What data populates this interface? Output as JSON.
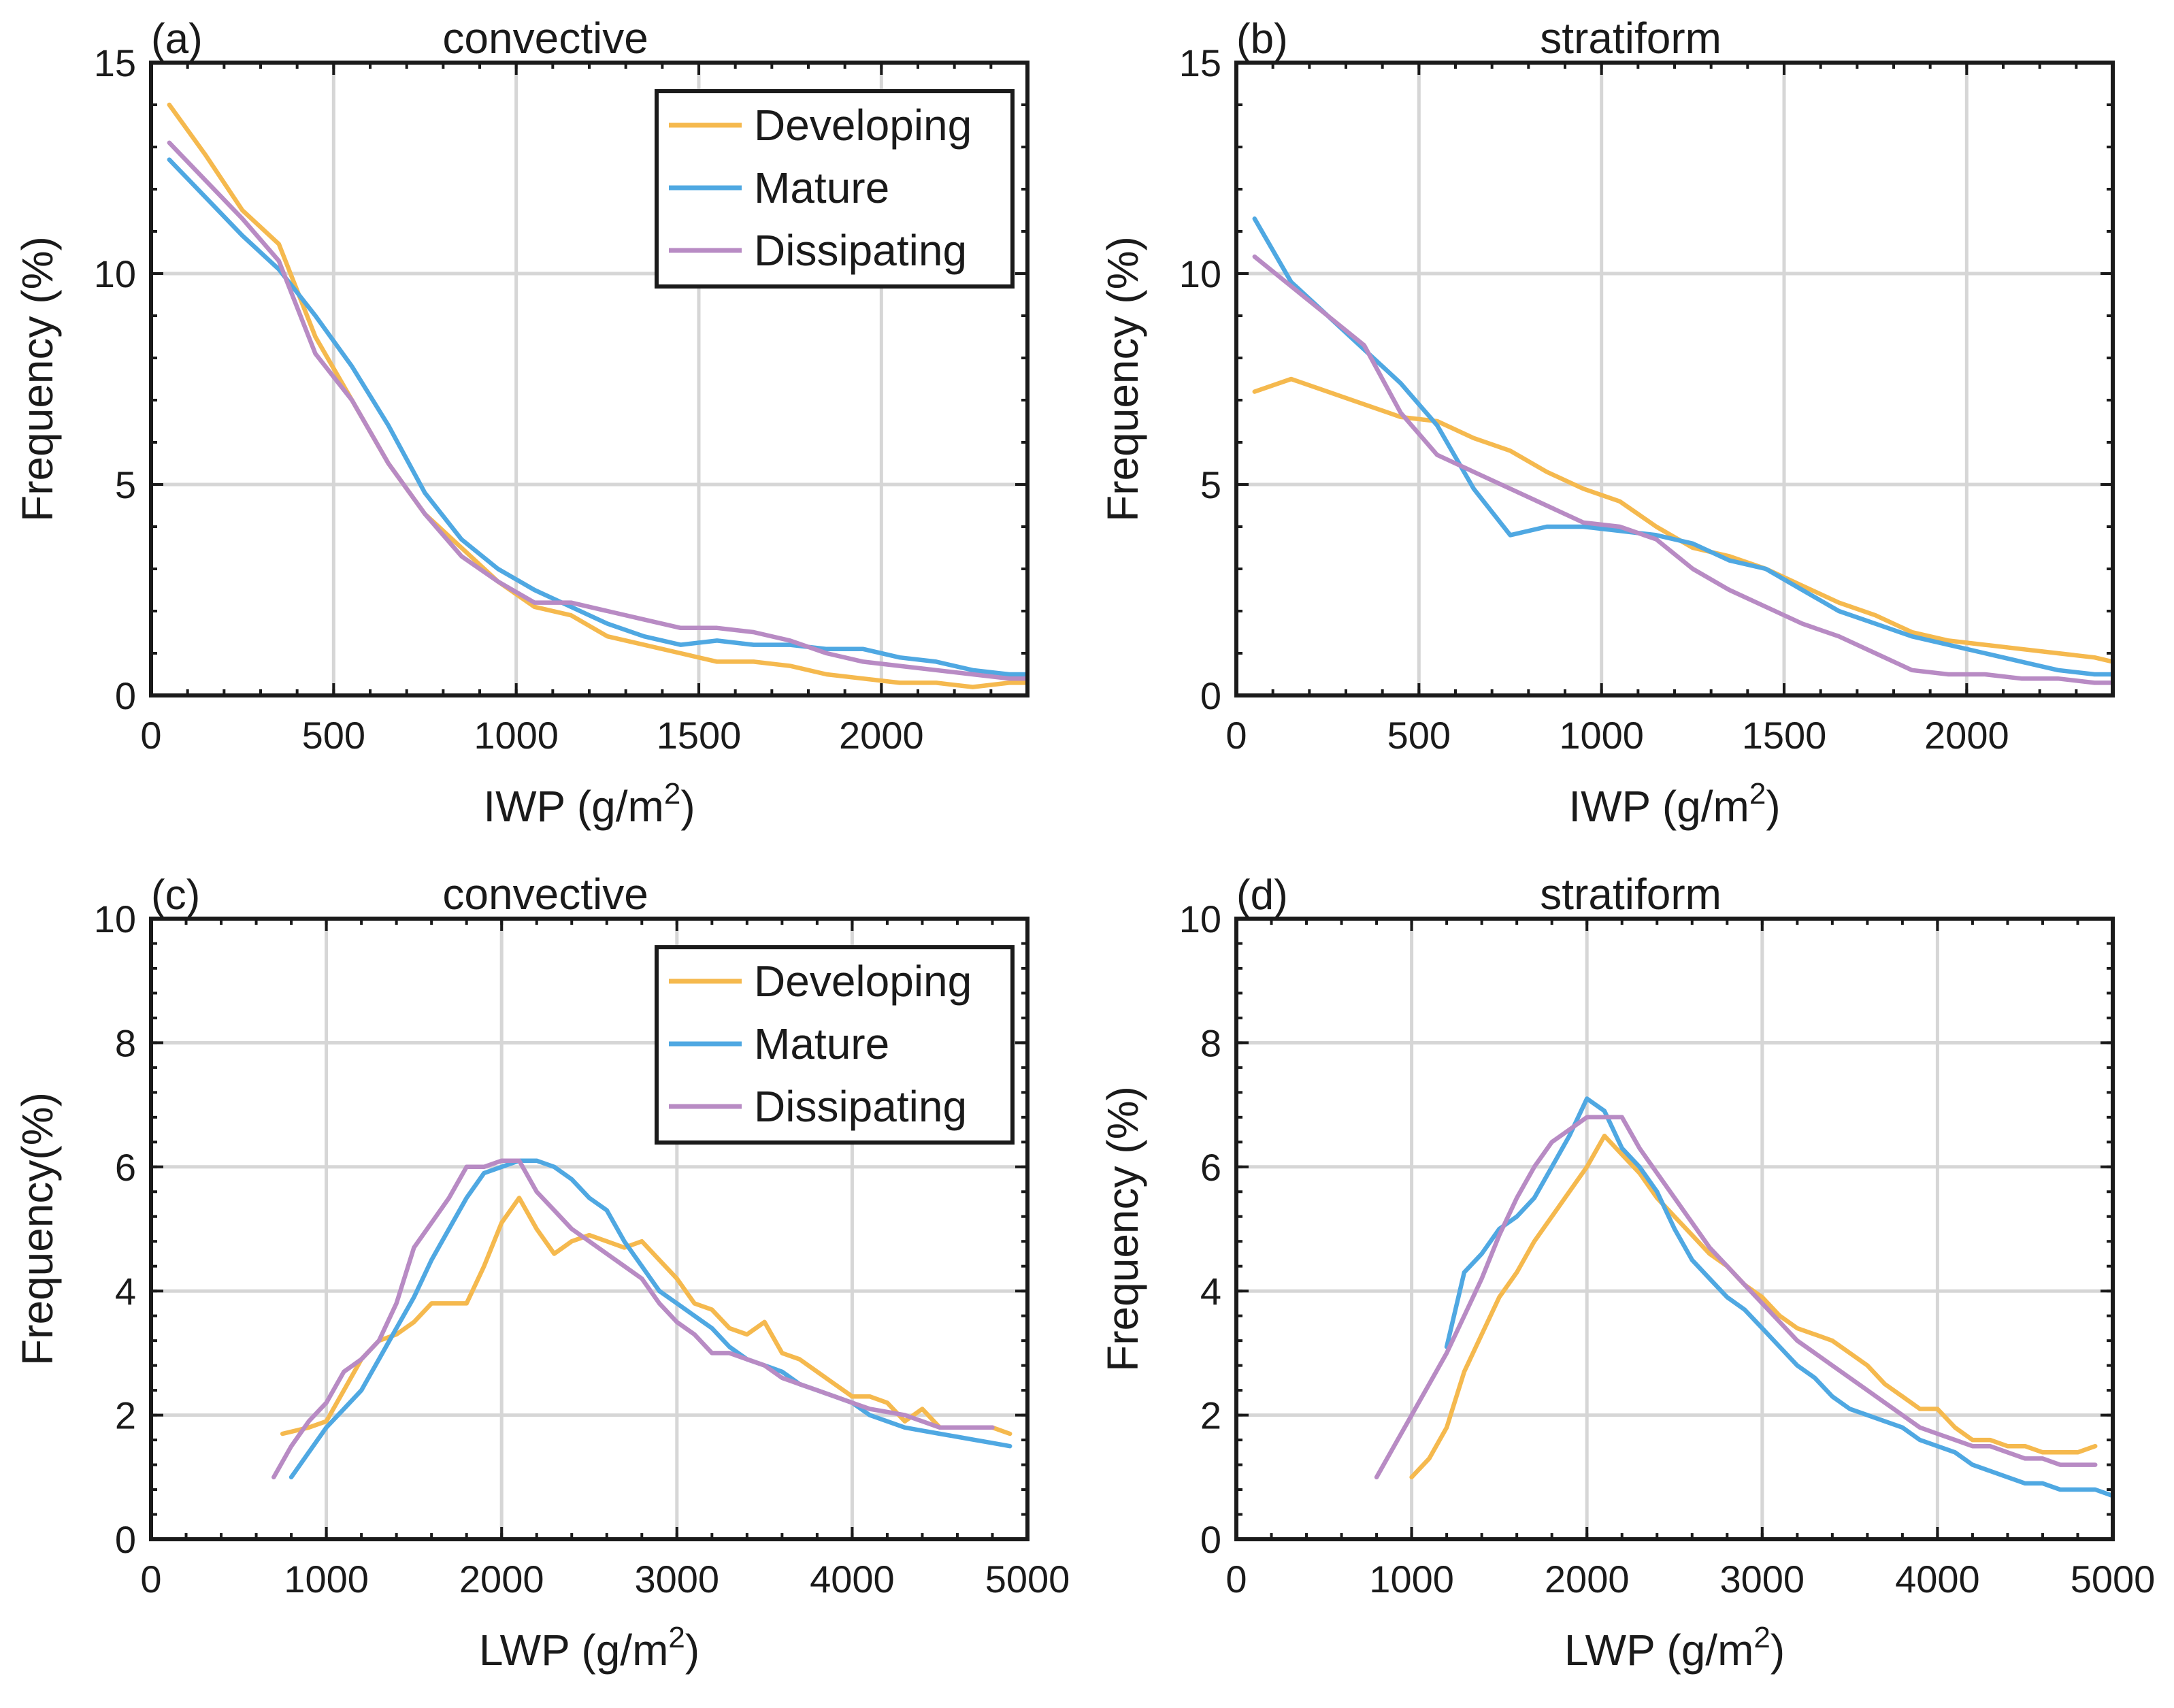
{
  "chart_data": [
    {
      "type": "line",
      "panel": "(a)",
      "title": "convective",
      "xlabel": "IWP (g/m",
      "xlabel_sup": "2",
      "xlabel_close": ")",
      "ylabel": "Frequency (%)",
      "xlim": [
        0,
        2400
      ],
      "ylim": [
        0,
        15
      ],
      "xticks": [
        0,
        500,
        1000,
        1500,
        2000
      ],
      "yticks": [
        0,
        5,
        10,
        15
      ],
      "grid": true,
      "legend": "top-right",
      "series": [
        {
          "name": "Developing",
          "color": "#f5b94e",
          "x": [
            50,
            150,
            250,
            350,
            450,
            550,
            650,
            750,
            850,
            950,
            1050,
            1150,
            1250,
            1350,
            1450,
            1550,
            1650,
            1750,
            1850,
            1950,
            2050,
            2150,
            2250,
            2350,
            2400
          ],
          "y": [
            14.0,
            12.8,
            11.5,
            10.7,
            8.5,
            7.0,
            5.5,
            4.3,
            3.5,
            2.7,
            2.1,
            1.9,
            1.4,
            1.2,
            1.0,
            0.8,
            0.8,
            0.7,
            0.5,
            0.4,
            0.3,
            0.3,
            0.2,
            0.3,
            0.3
          ]
        },
        {
          "name": "Mature",
          "color": "#4fa8e2",
          "x": [
            50,
            150,
            250,
            350,
            450,
            550,
            650,
            750,
            850,
            950,
            1050,
            1150,
            1250,
            1350,
            1450,
            1550,
            1650,
            1750,
            1850,
            1950,
            2050,
            2150,
            2250,
            2350,
            2400
          ],
          "y": [
            12.7,
            11.8,
            10.9,
            10.1,
            9.0,
            7.8,
            6.4,
            4.8,
            3.7,
            3.0,
            2.5,
            2.1,
            1.7,
            1.4,
            1.2,
            1.3,
            1.2,
            1.2,
            1.1,
            1.1,
            0.9,
            0.8,
            0.6,
            0.5,
            0.5
          ]
        },
        {
          "name": "Dissipating",
          "color": "#b88bc4",
          "x": [
            50,
            150,
            250,
            350,
            450,
            550,
            650,
            750,
            850,
            950,
            1050,
            1150,
            1250,
            1350,
            1450,
            1550,
            1650,
            1750,
            1850,
            1950,
            2050,
            2150,
            2250,
            2350,
            2400
          ],
          "y": [
            13.1,
            12.2,
            11.3,
            10.3,
            8.1,
            7.0,
            5.5,
            4.3,
            3.3,
            2.7,
            2.2,
            2.2,
            2.0,
            1.8,
            1.6,
            1.6,
            1.5,
            1.3,
            1.0,
            0.8,
            0.7,
            0.6,
            0.5,
            0.4,
            0.4
          ]
        }
      ]
    },
    {
      "type": "line",
      "panel": "(b)",
      "title": "stratiform",
      "xlabel": "IWP (g/m",
      "xlabel_sup": "2",
      "xlabel_close": ")",
      "ylabel": "Frequency (%)",
      "xlim": [
        0,
        2400
      ],
      "ylim": [
        0,
        15
      ],
      "xticks": [
        0,
        500,
        1000,
        1500,
        2000
      ],
      "yticks": [
        0,
        5,
        10,
        15
      ],
      "grid": true,
      "legend": "none",
      "series": [
        {
          "name": "Developing",
          "color": "#f5b94e",
          "x": [
            50,
            150,
            250,
            350,
            450,
            550,
            650,
            750,
            850,
            950,
            1050,
            1150,
            1250,
            1350,
            1450,
            1550,
            1650,
            1750,
            1850,
            1950,
            2050,
            2150,
            2250,
            2350,
            2400
          ],
          "y": [
            7.2,
            7.5,
            7.2,
            6.9,
            6.6,
            6.5,
            6.1,
            5.8,
            5.3,
            4.9,
            4.6,
            4.0,
            3.5,
            3.3,
            3.0,
            2.6,
            2.2,
            1.9,
            1.5,
            1.3,
            1.2,
            1.1,
            1.0,
            0.9,
            0.8
          ]
        },
        {
          "name": "Mature",
          "color": "#4fa8e2",
          "x": [
            50,
            150,
            250,
            350,
            450,
            550,
            650,
            750,
            850,
            950,
            1050,
            1150,
            1250,
            1350,
            1450,
            1550,
            1650,
            1750,
            1850,
            1950,
            2050,
            2150,
            2250,
            2350,
            2400
          ],
          "y": [
            11.3,
            9.8,
            9.0,
            8.2,
            7.4,
            6.4,
            4.9,
            3.8,
            4.0,
            4.0,
            3.9,
            3.8,
            3.6,
            3.2,
            3.0,
            2.5,
            2.0,
            1.7,
            1.4,
            1.2,
            1.0,
            0.8,
            0.6,
            0.5,
            0.5
          ]
        },
        {
          "name": "Dissipating",
          "color": "#b88bc4",
          "x": [
            50,
            150,
            250,
            350,
            450,
            550,
            650,
            750,
            850,
            950,
            1050,
            1150,
            1250,
            1350,
            1450,
            1550,
            1650,
            1750,
            1850,
            1950,
            2050,
            2150,
            2250,
            2350,
            2400
          ],
          "y": [
            10.4,
            9.7,
            9.0,
            8.3,
            6.7,
            5.7,
            5.3,
            4.9,
            4.5,
            4.1,
            4.0,
            3.7,
            3.0,
            2.5,
            2.1,
            1.7,
            1.4,
            1.0,
            0.6,
            0.5,
            0.5,
            0.4,
            0.4,
            0.3,
            0.3
          ]
        }
      ]
    },
    {
      "type": "line",
      "panel": "(c)",
      "title": "convective",
      "xlabel": "LWP (g/m",
      "xlabel_sup": "2",
      "xlabel_close": ")",
      "ylabel": "Frequency(%)",
      "xlim": [
        0,
        5000
      ],
      "ylim": [
        0,
        10
      ],
      "xticks": [
        0,
        1000,
        2000,
        3000,
        4000,
        5000
      ],
      "yticks": [
        0,
        2,
        4,
        6,
        8,
        10
      ],
      "grid": true,
      "legend": "top-right",
      "series": [
        {
          "name": "Developing",
          "color": "#f5b94e",
          "x": [
            750,
            900,
            1000,
            1100,
            1200,
            1300,
            1400,
            1500,
            1600,
            1700,
            1800,
            1900,
            2000,
            2100,
            2200,
            2300,
            2400,
            2500,
            2600,
            2700,
            2800,
            2900,
            3000,
            3100,
            3200,
            3300,
            3400,
            3500,
            3600,
            3700,
            3800,
            3900,
            4000,
            4100,
            4200,
            4300,
            4400,
            4500,
            4600,
            4700,
            4800,
            4900
          ],
          "y": [
            1.7,
            1.8,
            1.9,
            2.4,
            2.9,
            3.2,
            3.3,
            3.5,
            3.8,
            3.8,
            3.8,
            4.4,
            5.1,
            5.5,
            5.0,
            4.6,
            4.8,
            4.9,
            4.8,
            4.7,
            4.8,
            4.5,
            4.2,
            3.8,
            3.7,
            3.4,
            3.3,
            3.5,
            3.0,
            2.9,
            2.7,
            2.5,
            2.3,
            2.3,
            2.2,
            1.9,
            2.1,
            1.8,
            1.8,
            1.8,
            1.8,
            1.7
          ]
        },
        {
          "name": "Mature",
          "color": "#4fa8e2",
          "x": [
            800,
            900,
            1000,
            1100,
            1200,
            1300,
            1400,
            1500,
            1600,
            1700,
            1800,
            1900,
            2000,
            2100,
            2200,
            2300,
            2400,
            2500,
            2600,
            2700,
            2800,
            2900,
            3000,
            3100,
            3200,
            3300,
            3400,
            3500,
            3600,
            3700,
            3800,
            3900,
            4000,
            4100,
            4200,
            4300,
            4400,
            4500,
            4600,
            4700,
            4800,
            4900
          ],
          "y": [
            1.0,
            1.4,
            1.8,
            2.1,
            2.4,
            2.9,
            3.4,
            3.9,
            4.5,
            5.0,
            5.5,
            5.9,
            6.0,
            6.1,
            6.1,
            6.0,
            5.8,
            5.5,
            5.3,
            4.8,
            4.4,
            4.0,
            3.8,
            3.6,
            3.4,
            3.1,
            2.9,
            2.8,
            2.7,
            2.5,
            2.4,
            2.3,
            2.2,
            2.0,
            1.9,
            1.8,
            1.75,
            1.7,
            1.65,
            1.6,
            1.55,
            1.5
          ]
        },
        {
          "name": "Dissipating",
          "color": "#b88bc4",
          "x": [
            700,
            800,
            900,
            1000,
            1100,
            1200,
            1300,
            1400,
            1500,
            1600,
            1700,
            1800,
            1900,
            2000,
            2100,
            2200,
            2300,
            2400,
            2500,
            2600,
            2700,
            2800,
            2900,
            3000,
            3100,
            3200,
            3300,
            3400,
            3500,
            3600,
            3700,
            3800,
            3900,
            4000,
            4100,
            4200,
            4300,
            4400,
            4500,
            4600,
            4700,
            4800
          ],
          "y": [
            1.0,
            1.5,
            1.9,
            2.2,
            2.7,
            2.9,
            3.2,
            3.8,
            4.7,
            5.1,
            5.5,
            6.0,
            6.0,
            6.1,
            6.1,
            5.6,
            5.3,
            5.0,
            4.8,
            4.6,
            4.4,
            4.2,
            3.8,
            3.5,
            3.3,
            3.0,
            3.0,
            2.9,
            2.8,
            2.6,
            2.5,
            2.4,
            2.3,
            2.2,
            2.1,
            2.05,
            2.0,
            1.9,
            1.8,
            1.8,
            1.8,
            1.8
          ]
        }
      ]
    },
    {
      "type": "line",
      "panel": "(d)",
      "title": "stratiform",
      "xlabel": "LWP (g/m",
      "xlabel_sup": "2",
      "xlabel_close": ")",
      "ylabel": "Frequency (%)",
      "xlim": [
        0,
        5000
      ],
      "ylim": [
        0,
        10
      ],
      "xticks": [
        0,
        1000,
        2000,
        3000,
        4000,
        5000
      ],
      "yticks": [
        0,
        2,
        4,
        6,
        8,
        10
      ],
      "grid": true,
      "legend": "none",
      "series": [
        {
          "name": "Developing",
          "color": "#f5b94e",
          "x": [
            1000,
            1100,
            1200,
            1300,
            1400,
            1500,
            1600,
            1700,
            1800,
            1900,
            2000,
            2100,
            2200,
            2300,
            2400,
            2500,
            2600,
            2700,
            2800,
            2900,
            3000,
            3100,
            3200,
            3300,
            3400,
            3500,
            3600,
            3700,
            3800,
            3900,
            4000,
            4100,
            4200,
            4300,
            4400,
            4500,
            4600,
            4700,
            4800,
            4900
          ],
          "y": [
            1.0,
            1.3,
            1.8,
            2.7,
            3.3,
            3.9,
            4.3,
            4.8,
            5.2,
            5.6,
            6.0,
            6.5,
            6.2,
            5.9,
            5.5,
            5.2,
            4.9,
            4.6,
            4.4,
            4.1,
            3.9,
            3.6,
            3.4,
            3.3,
            3.2,
            3.0,
            2.8,
            2.5,
            2.3,
            2.1,
            2.1,
            1.8,
            1.6,
            1.6,
            1.5,
            1.5,
            1.4,
            1.4,
            1.4,
            1.5
          ]
        },
        {
          "name": "Mature",
          "color": "#4fa8e2",
          "x": [
            1200,
            1300,
            1400,
            1500,
            1600,
            1700,
            1800,
            1900,
            2000,
            2100,
            2200,
            2300,
            2400,
            2500,
            2600,
            2700,
            2800,
            2900,
            3000,
            3100,
            3200,
            3300,
            3400,
            3500,
            3600,
            3700,
            3800,
            3900,
            4000,
            4100,
            4200,
            4300,
            4400,
            4500,
            4600,
            4700,
            4800,
            4900,
            5000
          ],
          "y": [
            3.1,
            4.3,
            4.6,
            5.0,
            5.2,
            5.5,
            6.0,
            6.5,
            7.1,
            6.9,
            6.3,
            6.0,
            5.6,
            5.0,
            4.5,
            4.2,
            3.9,
            3.7,
            3.4,
            3.1,
            2.8,
            2.6,
            2.3,
            2.1,
            2.0,
            1.9,
            1.8,
            1.6,
            1.5,
            1.4,
            1.2,
            1.1,
            1.0,
            0.9,
            0.9,
            0.8,
            0.8,
            0.8,
            0.7
          ]
        },
        {
          "name": "Dissipating",
          "color": "#b88bc4",
          "x": [
            800,
            900,
            1000,
            1100,
            1200,
            1300,
            1400,
            1500,
            1600,
            1700,
            1800,
            1900,
            2000,
            2100,
            2200,
            2300,
            2400,
            2500,
            2600,
            2700,
            2800,
            2900,
            3000,
            3100,
            3200,
            3300,
            3400,
            3500,
            3600,
            3700,
            3800,
            3900,
            4000,
            4100,
            4200,
            4300,
            4400,
            4500,
            4600,
            4700,
            4800,
            4900
          ],
          "y": [
            1.0,
            1.5,
            2.0,
            2.5,
            3.0,
            3.6,
            4.2,
            4.9,
            5.5,
            6.0,
            6.4,
            6.6,
            6.8,
            6.8,
            6.8,
            6.3,
            5.9,
            5.5,
            5.1,
            4.7,
            4.4,
            4.1,
            3.8,
            3.5,
            3.2,
            3.0,
            2.8,
            2.6,
            2.4,
            2.2,
            2.0,
            1.8,
            1.7,
            1.6,
            1.5,
            1.5,
            1.4,
            1.3,
            1.3,
            1.2,
            1.2,
            1.2
          ]
        }
      ]
    }
  ]
}
